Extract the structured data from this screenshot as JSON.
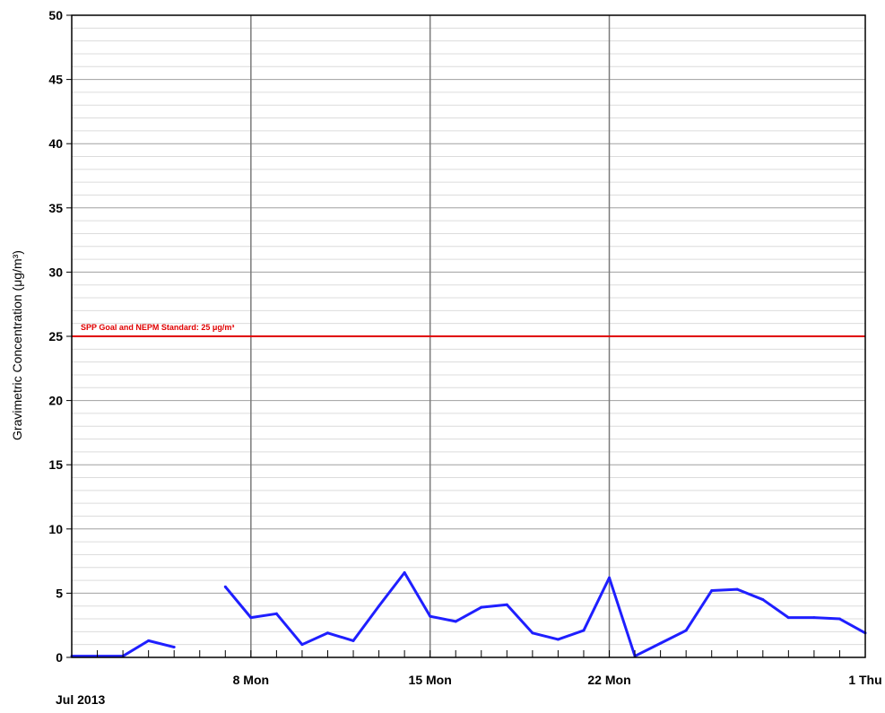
{
  "chart_data": {
    "type": "line",
    "ylabel": "Gravimetric Concentration (μg/m³)",
    "ylim": [
      0,
      50
    ],
    "y_ticks": [
      0,
      5,
      10,
      15,
      20,
      25,
      30,
      35,
      40,
      45,
      50
    ],
    "x_start_label": "Jul 2013",
    "x_ticks": [
      {
        "label": "8 Mon",
        "date": "2013-07-08"
      },
      {
        "label": "15 Mon",
        "date": "2013-07-15"
      },
      {
        "label": "22 Mon",
        "date": "2013-07-22"
      },
      {
        "label": "1 Thu",
        "date": "2013-08-01"
      }
    ],
    "x_range": [
      "2013-07-01",
      "2013-08-01"
    ],
    "grid": true,
    "limit_line": {
      "value": 25,
      "label": "SPP Goal and NEPM Standard: 25 μg/m³",
      "color": "#e00000"
    },
    "series": [
      {
        "color": "#1f1fff",
        "points": [
          [
            "2013-07-01",
            0.1
          ],
          [
            "2013-07-02",
            0.1
          ],
          [
            "2013-07-03",
            0.1
          ],
          [
            "2013-07-04",
            1.3
          ],
          [
            "2013-07-05",
            0.8
          ],
          [
            "2013-07-06",
            null
          ],
          [
            "2013-07-07",
            5.5
          ],
          [
            "2013-07-08",
            3.1
          ],
          [
            "2013-07-09",
            3.4
          ],
          [
            "2013-07-10",
            1.0
          ],
          [
            "2013-07-11",
            1.9
          ],
          [
            "2013-07-12",
            1.3
          ],
          [
            "2013-07-13",
            4.0
          ],
          [
            "2013-07-14",
            6.6
          ],
          [
            "2013-07-15",
            3.2
          ],
          [
            "2013-07-16",
            2.8
          ],
          [
            "2013-07-17",
            3.9
          ],
          [
            "2013-07-18",
            4.1
          ],
          [
            "2013-07-19",
            1.9
          ],
          [
            "2013-07-20",
            1.4
          ],
          [
            "2013-07-21",
            2.1
          ],
          [
            "2013-07-22",
            6.2
          ],
          [
            "2013-07-23",
            0.1
          ],
          [
            "2013-07-24",
            1.1
          ],
          [
            "2013-07-25",
            2.1
          ],
          [
            "2013-07-26",
            5.2
          ],
          [
            "2013-07-27",
            5.3
          ],
          [
            "2013-07-28",
            4.5
          ],
          [
            "2013-07-29",
            3.1
          ],
          [
            "2013-07-30",
            3.1
          ],
          [
            "2013-07-31",
            3.0
          ],
          [
            "2013-08-01",
            1.9
          ]
        ]
      }
    ]
  }
}
